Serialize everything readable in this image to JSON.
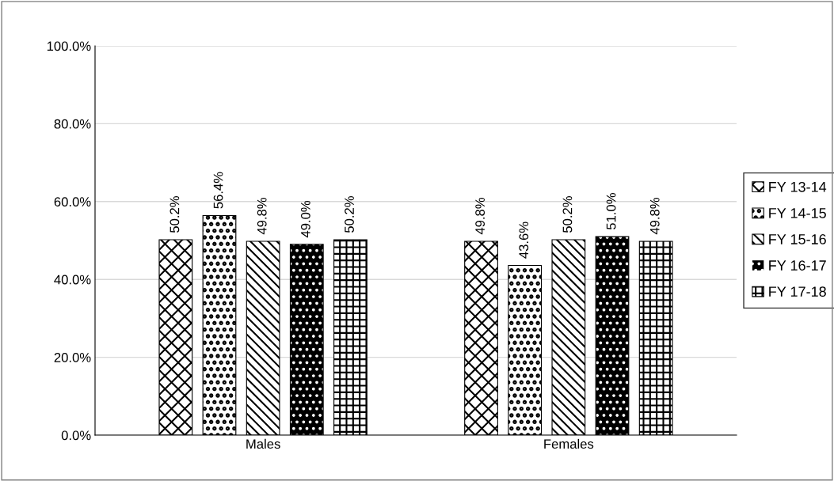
{
  "chart_data": {
    "type": "bar",
    "categories": [
      "Males",
      "Females"
    ],
    "series": [
      {
        "name": "FY 13-14",
        "color": "#000000",
        "values": [
          50.2,
          49.8
        ],
        "value_labels": [
          "50.2%",
          "49.8%"
        ]
      },
      {
        "name": "FY 14-15",
        "color": "#000000",
        "values": [
          56.4,
          43.6
        ],
        "value_labels": [
          "56.4%",
          "43.6%"
        ]
      },
      {
        "name": "FY 15-16",
        "color": "#000000",
        "values": [
          49.8,
          50.2
        ],
        "value_labels": [
          "49.8%",
          "50.2%"
        ]
      },
      {
        "name": "FY 16-17",
        "color": "#000000",
        "values": [
          49.0,
          51.0
        ],
        "value_labels": [
          "49.0%",
          "51.0%"
        ]
      },
      {
        "name": "FY 17-18",
        "color": "#000000",
        "values": [
          50.2,
          49.8
        ],
        "value_labels": [
          "50.2%",
          "49.8%"
        ]
      }
    ],
    "ylim": [
      0,
      100
    ],
    "yticks": [
      {
        "value": 0,
        "label": "0.0%"
      },
      {
        "value": 20,
        "label": "20.0%"
      },
      {
        "value": 40,
        "label": "40.0%"
      },
      {
        "value": 60,
        "label": "60.0%"
      },
      {
        "value": 80,
        "label": "80.0%"
      },
      {
        "value": 100,
        "label": "100.0%"
      }
    ],
    "grid": "y",
    "legend": "right"
  }
}
